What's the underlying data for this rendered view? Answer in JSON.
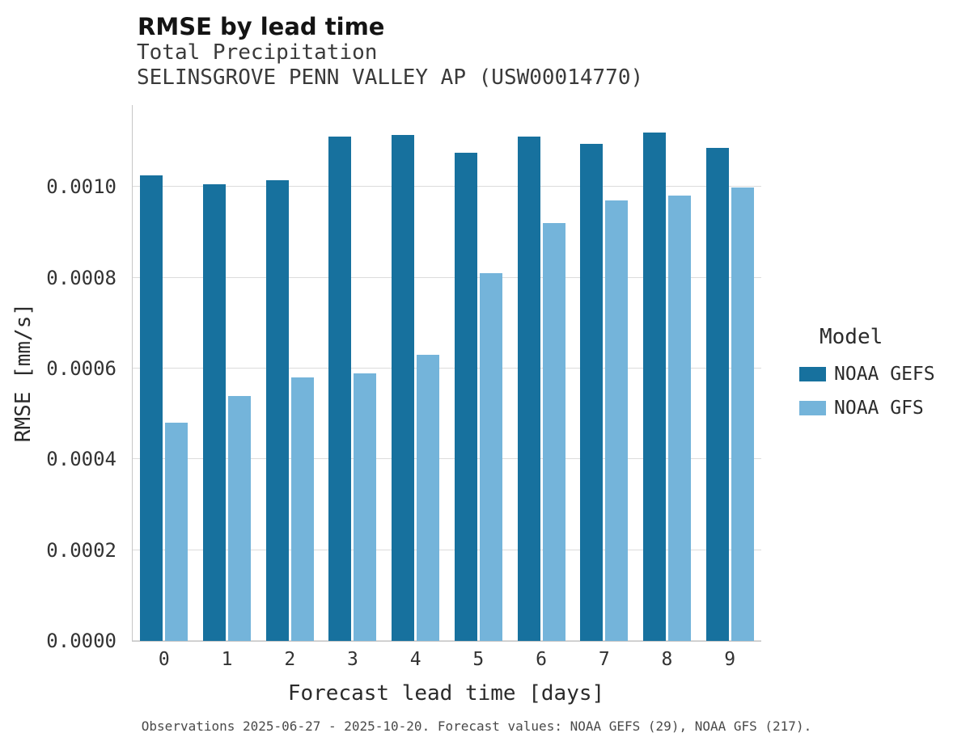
{
  "caption": "Observations 2025-06-27 - 2025-10-20. Forecast values: NOAA GEFS (29), NOAA GFS (217).",
  "chart_data": {
    "type": "bar",
    "title": "RMSE by lead time",
    "subtitle": [
      "Total Precipitation",
      "SELINSGROVE PENN VALLEY AP (USW00014770)"
    ],
    "xlabel": "Forecast lead time [days]",
    "ylabel": "RMSE [mm/s]",
    "categories": [
      "0",
      "1",
      "2",
      "3",
      "4",
      "5",
      "6",
      "7",
      "8",
      "9"
    ],
    "series": [
      {
        "name": "NOAA GEFS",
        "color": "#17719e",
        "values": [
          0.001025,
          0.001005,
          0.001015,
          0.00111,
          0.001115,
          0.001075,
          0.00111,
          0.001095,
          0.00112,
          0.001085
        ]
      },
      {
        "name": "NOAA GFS",
        "color": "#74b4da",
        "values": [
          0.00048,
          0.00054,
          0.00058,
          0.00059,
          0.00063,
          0.00081,
          0.00092,
          0.00097,
          0.00098,
          0.000998
        ]
      }
    ],
    "ylim": [
      0,
      0.00118
    ],
    "yticks": [
      0.0,
      0.0002,
      0.0004,
      0.0006,
      0.0008,
      0.001
    ],
    "ytick_labels": [
      "0.0000",
      "0.0002",
      "0.0004",
      "0.0006",
      "0.0008",
      "0.0010"
    ],
    "grid": "horizontal",
    "legend_title": "Model",
    "legend_position": "right"
  }
}
